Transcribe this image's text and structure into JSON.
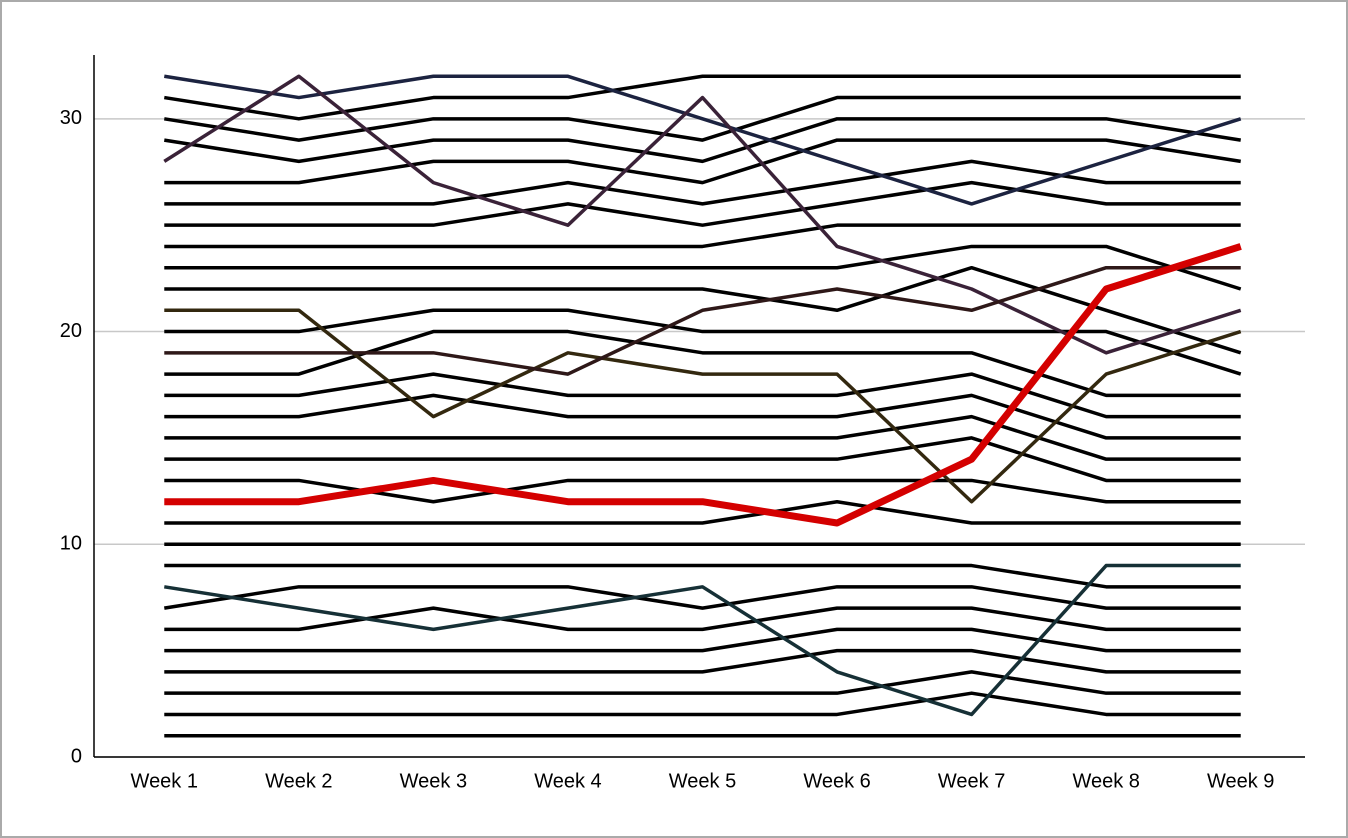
{
  "chart_data": {
    "type": "line",
    "categories": [
      "Week 1",
      "Week 2",
      "Week 3",
      "Week 4",
      "Week 5",
      "Week 6",
      "Week 7",
      "Week 8",
      "Week 9"
    ],
    "ylim": [
      0,
      33
    ],
    "yticks": [
      0,
      10,
      20,
      30
    ],
    "grid": true,
    "series": [
      {
        "color": "#000000",
        "values": [
          1,
          1,
          1,
          1,
          1,
          1,
          1,
          1,
          1
        ]
      },
      {
        "color": "#000000",
        "values": [
          2,
          2,
          2,
          2,
          2,
          2,
          3,
          2,
          2
        ]
      },
      {
        "color": "#000000",
        "values": [
          3,
          3,
          3,
          3,
          3,
          3,
          4,
          3,
          3
        ]
      },
      {
        "color": "#000000",
        "values": [
          4,
          4,
          4,
          4,
          4,
          5,
          5,
          4,
          4
        ]
      },
      {
        "color": "#000000",
        "values": [
          5,
          5,
          5,
          5,
          5,
          6,
          6,
          5,
          5
        ]
      },
      {
        "color": "#000000",
        "values": [
          6,
          6,
          7,
          6,
          6,
          7,
          7,
          6,
          6
        ]
      },
      {
        "color": "#000000",
        "values": [
          7,
          8,
          8,
          8,
          7,
          8,
          8,
          7,
          7
        ]
      },
      {
        "color": "#000000",
        "values": [
          9,
          9,
          9,
          9,
          9,
          9,
          9,
          8,
          8
        ]
      },
      {
        "color": "#000000",
        "values": [
          10,
          10,
          10,
          10,
          10,
          10,
          10,
          10,
          10
        ]
      },
      {
        "color": "#000000",
        "values": [
          11,
          11,
          11,
          11,
          11,
          12,
          11,
          11,
          11
        ]
      },
      {
        "color": "#000000",
        "values": [
          13,
          13,
          12,
          13,
          13,
          13,
          13,
          12,
          12
        ]
      },
      {
        "color": "#000000",
        "values": [
          14,
          14,
          14,
          14,
          14,
          14,
          15,
          13,
          13
        ]
      },
      {
        "color": "#000000",
        "values": [
          15,
          15,
          15,
          15,
          15,
          15,
          16,
          14,
          14
        ]
      },
      {
        "color": "#000000",
        "values": [
          16,
          16,
          17,
          16,
          16,
          16,
          17,
          15,
          15
        ]
      },
      {
        "color": "#000000",
        "values": [
          17,
          17,
          18,
          17,
          17,
          17,
          18,
          16,
          16
        ]
      },
      {
        "color": "#000000",
        "values": [
          18,
          18,
          20,
          20,
          19,
          19,
          19,
          17,
          17
        ]
      },
      {
        "color": "#000000",
        "values": [
          20,
          20,
          21,
          21,
          20,
          20,
          20,
          20,
          18
        ]
      },
      {
        "color": "#000000",
        "values": [
          22,
          22,
          22,
          22,
          22,
          21,
          23,
          21,
          19
        ]
      },
      {
        "color": "#000000",
        "values": [
          23,
          23,
          23,
          23,
          23,
          23,
          24,
          24,
          22
        ]
      },
      {
        "color": "#000000",
        "values": [
          24,
          24,
          24,
          24,
          24,
          25,
          25,
          25,
          25
        ]
      },
      {
        "color": "#000000",
        "values": [
          25,
          25,
          25,
          26,
          25,
          26,
          27,
          26,
          26
        ]
      },
      {
        "color": "#000000",
        "values": [
          26,
          26,
          26,
          27,
          26,
          27,
          28,
          27,
          27
        ]
      },
      {
        "color": "#000000",
        "values": [
          27,
          27,
          28,
          28,
          27,
          29,
          29,
          29,
          28
        ]
      },
      {
        "color": "#000000",
        "values": [
          29,
          28,
          29,
          29,
          28,
          30,
          30,
          30,
          29
        ]
      },
      {
        "color": "#000000",
        "values": [
          30,
          29,
          30,
          30,
          29,
          31,
          31,
          31,
          31
        ]
      },
      {
        "color": "#000000",
        "values": [
          31,
          30,
          31,
          31,
          32,
          32,
          32,
          32,
          32
        ]
      },
      {
        "color": "#1c2340",
        "values": [
          32,
          31,
          32,
          32,
          30,
          28,
          26,
          28,
          30
        ]
      },
      {
        "color": "#3a2238",
        "values": [
          28,
          32,
          27,
          25,
          31,
          24,
          22,
          19,
          21
        ]
      },
      {
        "color": "#33280f",
        "values": [
          21,
          21,
          16,
          19,
          18,
          18,
          12,
          18,
          20
        ]
      },
      {
        "color": "#2e1818",
        "values": [
          19,
          19,
          19,
          18,
          21,
          22,
          21,
          23,
          23
        ]
      },
      {
        "color": "#163036",
        "values": [
          8,
          7,
          6,
          7,
          8,
          4,
          2,
          9,
          9
        ]
      },
      {
        "color": "#d40000",
        "values": [
          12,
          12,
          13,
          12,
          12,
          11,
          14,
          22,
          24
        ]
      }
    ]
  }
}
